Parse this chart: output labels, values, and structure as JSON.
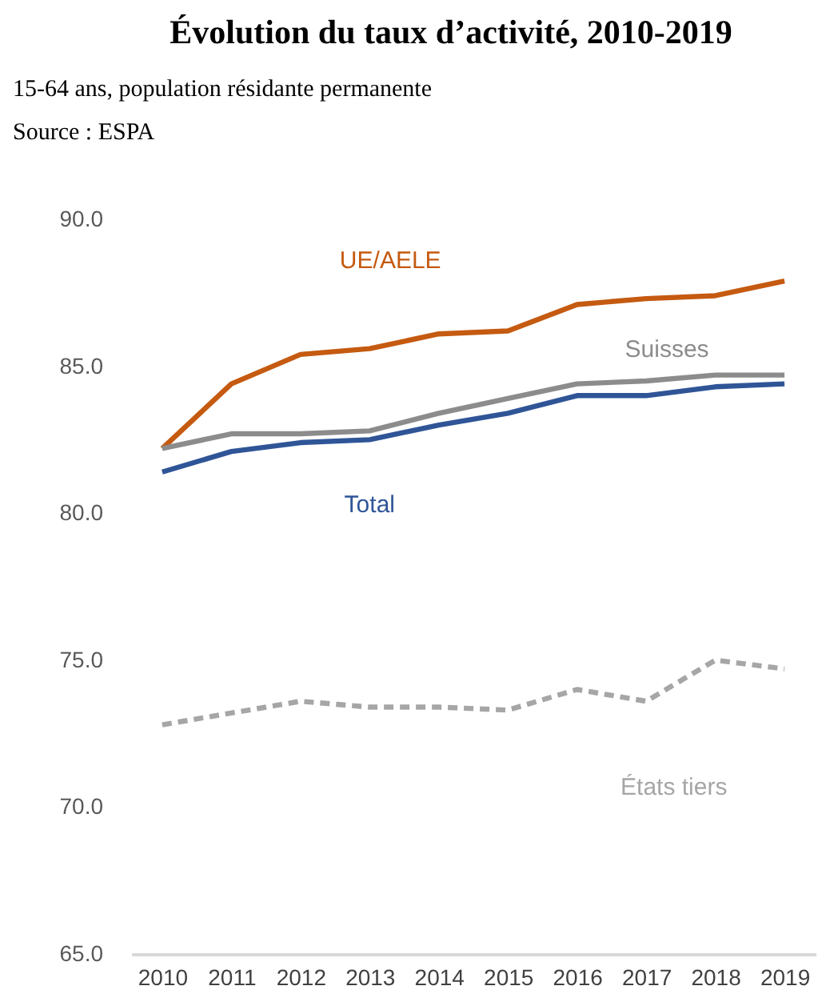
{
  "chart_data": {
    "type": "line",
    "title": "Évolution du taux d’activité, 2010-2019",
    "subtitle": "15-64 ans, population résidante permanente",
    "annotations": [
      "Source : ESPA"
    ],
    "categories": [
      "2010",
      "2011",
      "2012",
      "2013",
      "2014",
      "2015",
      "2016",
      "2017",
      "2018",
      "2019"
    ],
    "ylim": [
      65,
      90
    ],
    "yticks": [
      {
        "value": 65,
        "label": "65.0"
      },
      {
        "value": 70,
        "label": "70.0"
      },
      {
        "value": 75,
        "label": "75.0"
      },
      {
        "value": 80,
        "label": "80.0"
      },
      {
        "value": 85,
        "label": "85.0"
      },
      {
        "value": 90,
        "label": "90.0"
      }
    ],
    "grid": false,
    "marker": "none",
    "series": [
      {
        "name": "UE/AELE",
        "color": "#c55a11",
        "line_style": "solid",
        "values": [
          82.2,
          84.4,
          85.4,
          85.6,
          86.1,
          86.2,
          87.1,
          87.3,
          87.4,
          87.9
        ]
      },
      {
        "name": "Suisses",
        "color": "#8c8c8c",
        "line_style": "solid",
        "values": [
          82.2,
          82.7,
          82.7,
          82.8,
          83.4,
          83.9,
          84.4,
          84.5,
          84.7,
          84.7
        ]
      },
      {
        "name": "Total",
        "color": "#2f5597",
        "line_style": "solid",
        "values": [
          81.4,
          82.1,
          82.4,
          82.5,
          83.0,
          83.4,
          84.0,
          84.0,
          84.3,
          84.4
        ]
      },
      {
        "name": "États tiers",
        "color": "#a6a6a6",
        "line_style": "dashed",
        "values": [
          72.8,
          73.2,
          73.6,
          73.4,
          73.4,
          73.3,
          74.0,
          73.6,
          75.0,
          74.7
        ]
      }
    ]
  }
}
